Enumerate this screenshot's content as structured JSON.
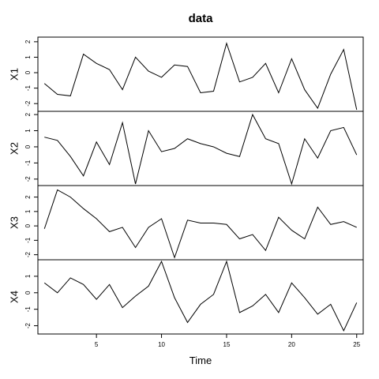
{
  "chart_data": {
    "type": "line",
    "title": "data",
    "xlabel": "Time",
    "x": [
      1,
      2,
      3,
      4,
      5,
      6,
      7,
      8,
      9,
      10,
      11,
      12,
      13,
      14,
      15,
      16,
      17,
      18,
      19,
      20,
      21,
      22,
      23,
      24,
      25
    ],
    "xlim": [
      0.5,
      25.5
    ],
    "xticks": [
      5,
      10,
      15,
      20,
      25
    ],
    "series": [
      {
        "name": "X1",
        "ylim": [
          -2.5,
          2.3
        ],
        "yticks": [
          -2,
          -1,
          0,
          1,
          2
        ],
        "values": [
          -0.7,
          -1.4,
          -1.5,
          1.2,
          0.6,
          0.2,
          -1.1,
          1.0,
          0.1,
          -0.3,
          0.5,
          0.4,
          -1.3,
          -1.2,
          1.9,
          -0.6,
          -0.3,
          0.6,
          -1.3,
          0.9,
          -1.1,
          -2.3,
          -0.1,
          1.5,
          -2.4
        ]
      },
      {
        "name": "X2",
        "ylim": [
          -2.4,
          2.2
        ],
        "yticks": [
          -2,
          -1,
          0,
          1,
          2
        ],
        "values": [
          0.6,
          0.4,
          -0.6,
          -1.8,
          0.3,
          -1.1,
          1.5,
          -2.3,
          1.0,
          -0.3,
          -0.1,
          0.5,
          0.2,
          0.0,
          -0.4,
          -0.6,
          2.0,
          0.5,
          0.2,
          -2.3,
          0.5,
          -0.7,
          1.0,
          1.2,
          -0.5
        ]
      },
      {
        "name": "X3",
        "ylim": [
          -2.35,
          2.8
        ],
        "yticks": [
          -2,
          -1,
          0,
          1,
          2
        ],
        "values": [
          -0.2,
          2.5,
          2.0,
          1.2,
          0.5,
          -0.4,
          -0.1,
          -1.5,
          -0.1,
          0.5,
          -2.2,
          0.4,
          0.2,
          0.2,
          0.1,
          -0.9,
          -0.6,
          -1.7,
          0.6,
          -0.3,
          -0.9,
          1.3,
          0.1,
          0.3,
          -0.1
        ]
      },
      {
        "name": "X4",
        "ylim": [
          -2.5,
          2.0
        ],
        "yticks": [
          -2,
          -1,
          0,
          1
        ],
        "values": [
          0.6,
          0.0,
          0.9,
          0.5,
          -0.4,
          0.5,
          -0.9,
          -0.2,
          0.4,
          1.9,
          -0.3,
          -1.8,
          -0.7,
          -0.1,
          1.9,
          -1.2,
          -0.8,
          -0.1,
          -1.2,
          0.6,
          -0.3,
          -1.3,
          -0.7,
          -2.3,
          -0.6
        ]
      }
    ]
  }
}
